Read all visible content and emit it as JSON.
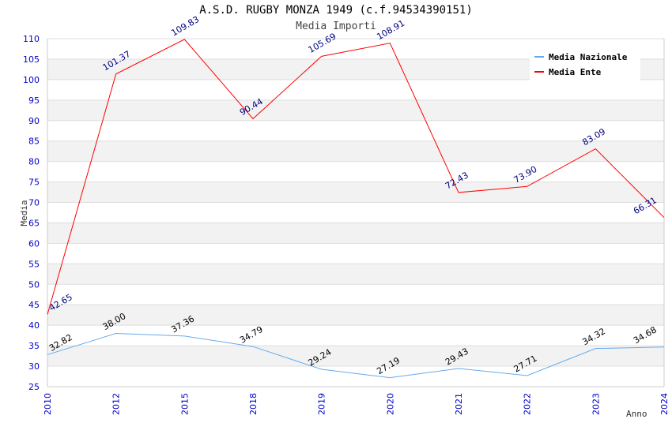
{
  "chart_data": {
    "type": "line",
    "title": "A.S.D. RUGBY MONZA 1949 (c.f.94534390151)",
    "subtitle": "Media Importi",
    "xlabel": "Anno",
    "ylabel": "Media",
    "ylim": [
      25,
      110
    ],
    "yticks": [
      "25",
      "30",
      "35",
      "40",
      "45",
      "50",
      "55",
      "60",
      "65",
      "70",
      "75",
      "80",
      "85",
      "90",
      "95",
      "100",
      "105",
      "110"
    ],
    "categories": [
      "2010",
      "2012",
      "2015",
      "2018",
      "2019",
      "2020",
      "2021",
      "2022",
      "2023",
      "2024"
    ],
    "legend_position": "top-right",
    "series": [
      {
        "name": "Media Nazionale",
        "color": "#66aaee",
        "label_color": "#000000",
        "values": [
          32.82,
          38.0,
          37.36,
          34.79,
          29.24,
          27.19,
          29.43,
          27.71,
          34.32,
          34.68
        ],
        "labels": [
          "32.82",
          "38.00",
          "37.36",
          "34.79",
          "29.24",
          "27.19",
          "29.43",
          "27.71",
          "34.32",
          "34.68"
        ]
      },
      {
        "name": "Media Ente",
        "color": "#ff0000",
        "label_color": "#000080",
        "values": [
          42.65,
          101.37,
          109.83,
          90.44,
          105.69,
          108.91,
          72.43,
          73.9,
          83.09,
          66.31
        ],
        "labels": [
          "42.65",
          "101.37",
          "109.83",
          "90.44",
          "105.69",
          "108.91",
          "72.43",
          "73.90",
          "83.09",
          "66.31"
        ]
      }
    ]
  }
}
